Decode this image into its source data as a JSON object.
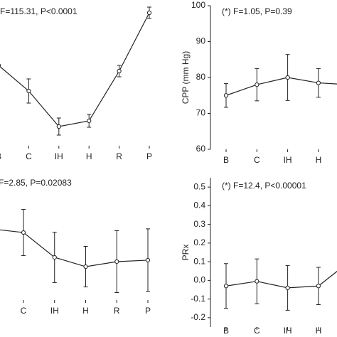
{
  "chart_data": [
    {
      "type": "line",
      "title": "F=115.31, P<0.0001",
      "categories": [
        "B",
        "C",
        "IH",
        "H",
        "R",
        "P"
      ],
      "values": [
        56.5,
        38.5,
        13.5,
        17.5,
        52.5,
        93.5
      ],
      "errors": [
        null,
        8.5,
        6,
        4.5,
        4,
        4
      ],
      "ylim": [
        0,
        100
      ],
      "color": "#222222"
    },
    {
      "type": "line",
      "title": "(*) F=1.05, P=0.39",
      "ylabel": "CPP (mm Hg)",
      "categories": [
        "B",
        "C",
        "IH",
        "H",
        null
      ],
      "values": [
        75,
        78,
        80,
        78.5,
        78
      ],
      "errors": [
        3.3,
        4.5,
        6.4,
        4,
        null
      ],
      "ylim": [
        60,
        100
      ],
      "yticks": [
        60,
        70,
        80,
        90,
        100
      ],
      "color": "#222222"
    },
    {
      "type": "line",
      "title": "F=2.85, P=0.02083",
      "categories": [
        null,
        "C",
        "IH",
        "H",
        "R",
        "P"
      ],
      "values": [
        58.1,
        55.2,
        34.9,
        27.3,
        31.4,
        32.6
      ],
      "errors": [
        null,
        18.9,
        20.6,
        16.6,
        25.3,
        25.6
      ],
      "ylim": [
        0,
        100
      ],
      "color": "#222222"
    },
    {
      "type": "line",
      "title": "(*) F=12.4, P<0.00001",
      "ylabel": "PRx",
      "categories": [
        "B",
        "C",
        "IH",
        "H",
        null
      ],
      "values": [
        -0.03,
        -0.005,
        -0.04,
        -0.03,
        0.1
      ],
      "errors": [
        0.12,
        0.12,
        0.12,
        0.1,
        null
      ],
      "ylim": [
        -0.25,
        0.55
      ],
      "yticks": [
        -0.2,
        -0.1,
        {
          "value": 0,
          "label": "0.0"
        },
        0.1,
        0.2,
        0.3,
        0.4,
        0.5
      ],
      "color": "#222222"
    }
  ]
}
